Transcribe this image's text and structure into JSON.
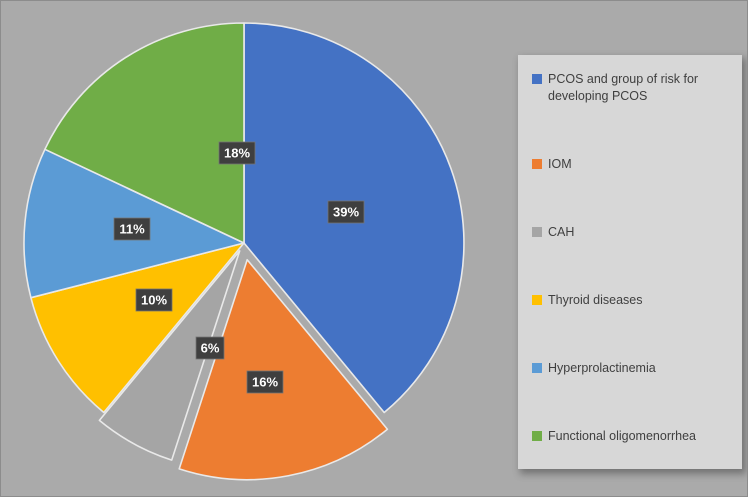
{
  "chart_data": {
    "type": "pie",
    "title": "",
    "categories": [
      "PCOS and group of risk for developing PCOS",
      "IOM",
      "CAH",
      "Thyroid diseases",
      "Hyperprolactinemia",
      "Functional oligomenorrhea"
    ],
    "values": [
      39,
      16,
      6,
      10,
      11,
      18
    ],
    "value_labels": [
      "39%",
      "16%",
      "6%",
      "10%",
      "11%",
      "18%"
    ],
    "colors": [
      "#4472c4",
      "#ed7d31",
      "#a5a5a5",
      "#ffc000",
      "#5b9bd5",
      "#70ad47"
    ],
    "start_angle_deg": 0,
    "direction": "clockwise",
    "exploded": [
      false,
      true,
      true,
      false,
      false,
      false
    ],
    "legend_position": "right",
    "grid": false
  },
  "theme": {
    "background": "#aaaaaa",
    "border": "#8c8c8c",
    "legend_fill": "#d7d7d7",
    "legend_text": "#3f3f3f",
    "data_label_fill": "#3f3f3f",
    "data_label_border": "#757575",
    "data_label_text": "#ffffff",
    "slice_stroke": "#e9e9e9"
  }
}
